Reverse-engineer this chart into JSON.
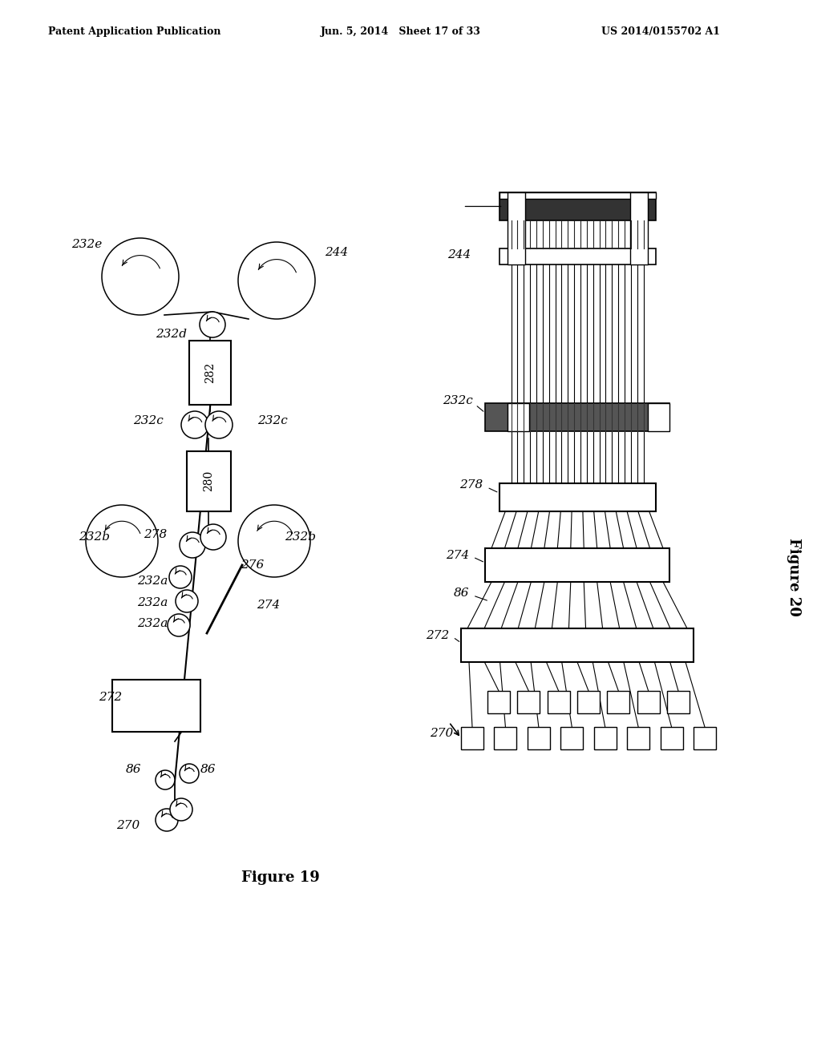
{
  "bg_color": "#ffffff",
  "header_left": "Patent Application Publication",
  "header_center": "Jun. 5, 2014   Sheet 17 of 33",
  "header_right": "US 2014/0155702 A1",
  "fig19_caption": "Figure 19",
  "fig20_caption": "Figure 20"
}
